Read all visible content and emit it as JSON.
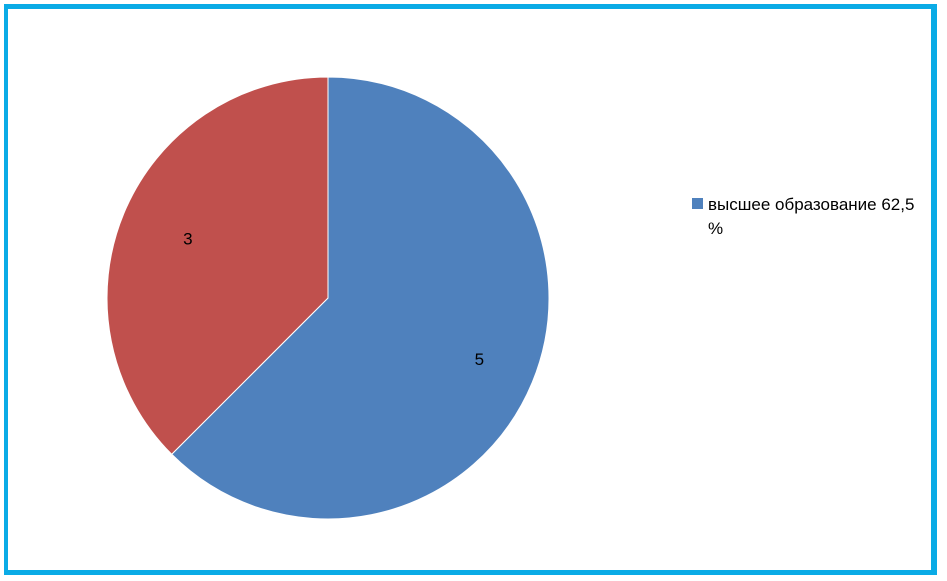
{
  "chart_data": {
    "type": "pie",
    "slices": [
      {
        "label": "высшее образование 62,5 %",
        "value": 5,
        "data_label": "5",
        "color": "#4f81bd"
      },
      {
        "label": "",
        "value": 3,
        "data_label": "3",
        "color": "#c0504d"
      }
    ],
    "legend": {
      "position": "right",
      "entries": [
        {
          "text": "высшее образование 62,5 %",
          "color": "#4f81bd"
        }
      ]
    }
  },
  "frame": {
    "border_color": "#0aabe6"
  }
}
